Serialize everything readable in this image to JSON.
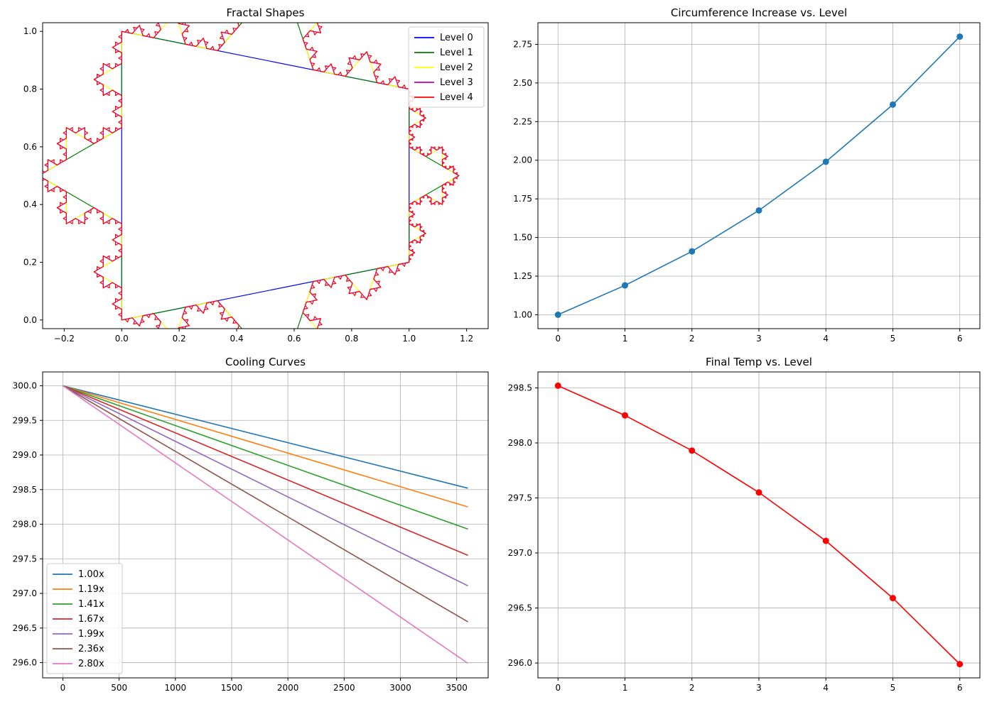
{
  "chart_data": [
    {
      "type": "line",
      "title": "Fractal Shapes",
      "xlabel": "",
      "ylabel": "",
      "xlim": [
        -0.275,
        1.275
      ],
      "ylim": [
        -0.03,
        1.03
      ],
      "xticks": [
        -0.2,
        0.0,
        0.2,
        0.4,
        0.6,
        0.8,
        1.0,
        1.2
      ],
      "xtick_labels": [
        "−0.2",
        "0.0",
        "0.2",
        "0.4",
        "0.6",
        "0.8",
        "1.0",
        "1.2"
      ],
      "yticks": [
        0.0,
        0.2,
        0.4,
        0.6,
        0.8,
        1.0
      ],
      "ytick_labels": [
        "0.0",
        "0.2",
        "0.4",
        "0.6",
        "0.8",
        "1.0"
      ],
      "grid": false,
      "legend": "top-right",
      "base_polygon": [
        [
          0,
          0
        ],
        [
          1,
          0.2
        ],
        [
          1,
          0.8
        ],
        [
          0,
          1
        ]
      ],
      "series": [
        {
          "name": "Level 0",
          "level": 0,
          "color": "#0000ff"
        },
        {
          "name": "Level 1",
          "level": 1,
          "color": "#008000"
        },
        {
          "name": "Level 2",
          "level": 2,
          "color": "#ffff00"
        },
        {
          "name": "Level 3",
          "level": 3,
          "color": "#bf00bf"
        },
        {
          "name": "Level 4",
          "level": 4,
          "color": "#ff0000"
        }
      ]
    },
    {
      "type": "line",
      "title": "Circumference Increase vs. Level",
      "xlabel": "",
      "ylabel": "",
      "xlim": [
        -0.3,
        6.3
      ],
      "ylim": [
        0.91,
        2.89
      ],
      "xticks": [
        0,
        1,
        2,
        3,
        4,
        5,
        6
      ],
      "xtick_labels": [
        "0",
        "1",
        "2",
        "3",
        "4",
        "5",
        "6"
      ],
      "yticks": [
        1.0,
        1.25,
        1.5,
        1.75,
        2.0,
        2.25,
        2.5,
        2.75
      ],
      "ytick_labels": [
        "1.00",
        "1.25",
        "1.50",
        "1.75",
        "2.00",
        "2.25",
        "2.50",
        "2.75"
      ],
      "grid": true,
      "x": [
        0,
        1,
        2,
        3,
        4,
        5,
        6
      ],
      "series": [
        {
          "values": [
            1.0,
            1.19,
            1.41,
            1.675,
            1.99,
            2.36,
            2.8
          ],
          "color": "#1f77b4",
          "marker": "circle"
        }
      ]
    },
    {
      "type": "line",
      "title": "Cooling Curves",
      "xlabel": "",
      "ylabel": "",
      "xlim": [
        -180,
        3780
      ],
      "ylim": [
        295.78,
        300.2
      ],
      "xticks": [
        0,
        500,
        1000,
        1500,
        2000,
        2500,
        3000,
        3500
      ],
      "xtick_labels": [
        "0",
        "500",
        "1000",
        "1500",
        "2000",
        "2500",
        "3000",
        "3500"
      ],
      "yticks": [
        296.0,
        296.5,
        297.0,
        297.5,
        298.0,
        298.5,
        299.0,
        299.5,
        300.0
      ],
      "ytick_labels": [
        "296.0",
        "296.5",
        "297.0",
        "297.5",
        "298.0",
        "298.5",
        "299.0",
        "299.5",
        "300.0"
      ],
      "grid": true,
      "legend": "bottom-left",
      "series": [
        {
          "name": "1.00x",
          "x": [
            0,
            3600
          ],
          "values": [
            300.0,
            298.52
          ],
          "color": "#1f77b4"
        },
        {
          "name": "1.19x",
          "x": [
            0,
            3600
          ],
          "values": [
            300.0,
            298.25
          ],
          "color": "#ff7f0e"
        },
        {
          "name": "1.41x",
          "x": [
            0,
            3600
          ],
          "values": [
            300.0,
            297.93
          ],
          "color": "#2ca02c"
        },
        {
          "name": "1.67x",
          "x": [
            0,
            3600
          ],
          "values": [
            300.0,
            297.55
          ],
          "color": "#d62728"
        },
        {
          "name": "1.99x",
          "x": [
            0,
            3600
          ],
          "values": [
            300.0,
            297.11
          ],
          "color": "#9467bd"
        },
        {
          "name": "2.36x",
          "x": [
            0,
            3600
          ],
          "values": [
            300.0,
            296.59
          ],
          "color": "#8c564b"
        },
        {
          "name": "2.80x",
          "x": [
            0,
            3600
          ],
          "values": [
            300.0,
            295.99
          ],
          "color": "#e377c2"
        }
      ]
    },
    {
      "type": "line",
      "title": "Final Temp vs. Level",
      "xlabel": "",
      "ylabel": "",
      "xlim": [
        -0.3,
        6.3
      ],
      "ylim": [
        295.865,
        298.645
      ],
      "xticks": [
        0,
        1,
        2,
        3,
        4,
        5,
        6
      ],
      "xtick_labels": [
        "0",
        "1",
        "2",
        "3",
        "4",
        "5",
        "6"
      ],
      "yticks": [
        296.0,
        296.5,
        297.0,
        297.5,
        298.0,
        298.5
      ],
      "ytick_labels": [
        "296.0",
        "296.5",
        "297.0",
        "297.5",
        "298.0",
        "298.5"
      ],
      "grid": true,
      "x": [
        0,
        1,
        2,
        3,
        4,
        5,
        6
      ],
      "series": [
        {
          "values": [
            298.52,
            298.25,
            297.93,
            297.55,
            297.11,
            296.59,
            295.99
          ],
          "color": "#ff0000",
          "marker": "circle"
        }
      ]
    }
  ]
}
